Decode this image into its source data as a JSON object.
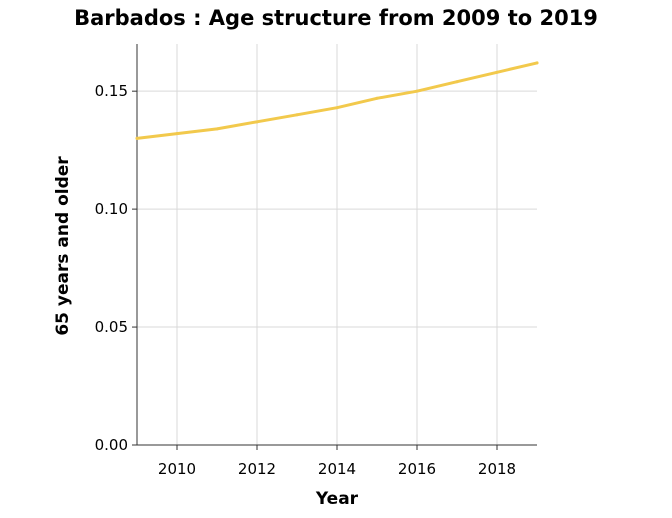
{
  "chart_data": {
    "type": "line",
    "title": "Barbados : Age structure from 2009 to 2019",
    "xlabel": "Year",
    "ylabel": "65 years and older",
    "xlim": [
      2009,
      2019
    ],
    "ylim": [
      0,
      0.17
    ],
    "x_ticks": [
      2010,
      2012,
      2014,
      2016,
      2018
    ],
    "y_ticks": [
      0.0,
      0.05,
      0.1,
      0.15
    ],
    "y_tick_labels": [
      "0.00",
      "0.05",
      "0.10",
      "0.15"
    ],
    "grid": true,
    "series": [
      {
        "color": "#f2c94c",
        "x": [
          2009,
          2010,
          2011,
          2012,
          2013,
          2014,
          2015,
          2016,
          2017,
          2018,
          2019
        ],
        "values": [
          0.13,
          0.132,
          0.134,
          0.137,
          0.14,
          0.143,
          0.147,
          0.15,
          0.154,
          0.158,
          0.162
        ]
      }
    ]
  }
}
